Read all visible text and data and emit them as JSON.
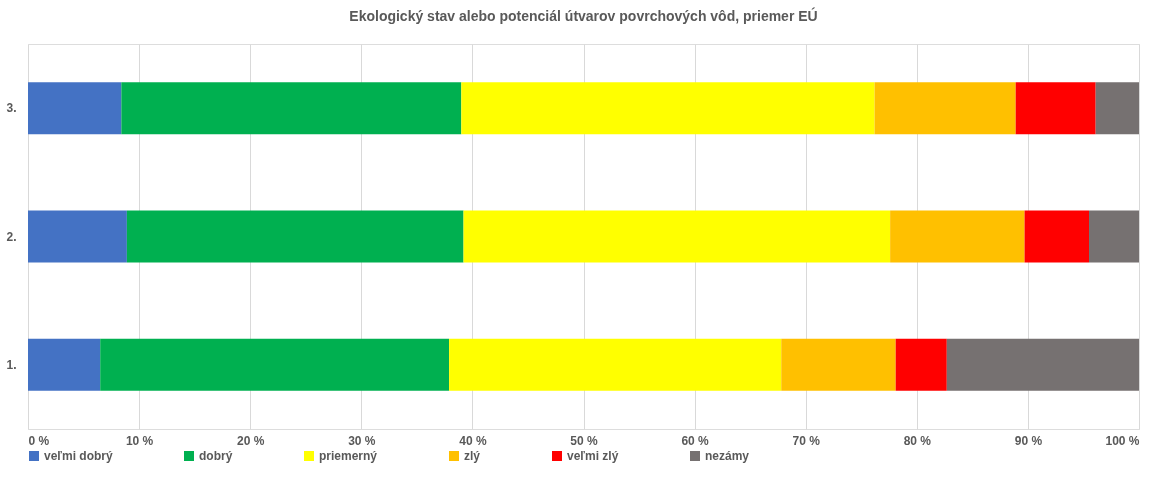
{
  "chart_data": {
    "type": "bar",
    "orientation": "horizontal",
    "stacked": true,
    "title": "Ekologický stav alebo potenciál útvarov povrchových vôd, priemer EÚ",
    "categories": [
      "3.",
      "2.",
      "1."
    ],
    "series": [
      {
        "name": "veľmi dobrý",
        "color": "#4472c4",
        "values": [
          8.4,
          8.9,
          6.5
        ]
      },
      {
        "name": "dobrý",
        "color": "#00b050",
        "values": [
          30.6,
          30.3,
          31.4
        ]
      },
      {
        "name": "priemerný",
        "color": "#ffff00",
        "values": [
          37.2,
          38.4,
          29.9
        ]
      },
      {
        "name": "zlý",
        "color": "#ffc000",
        "values": [
          12.7,
          12.1,
          10.3
        ]
      },
      {
        "name": "veľmi zlý",
        "color": "#ff0000",
        "values": [
          7.2,
          5.8,
          4.6
        ]
      },
      {
        "name": "nezámy",
        "color": "#767171",
        "values": [
          3.9,
          4.5,
          17.3
        ]
      }
    ],
    "xlim": [
      0,
      100
    ],
    "xticks": [
      {
        "value": 0,
        "label": "0 %"
      },
      {
        "value": 10,
        "label": "10 %"
      },
      {
        "value": 20,
        "label": "20 %"
      },
      {
        "value": 30,
        "label": "30 %"
      },
      {
        "value": 40,
        "label": "40 %"
      },
      {
        "value": 50,
        "label": "50 %"
      },
      {
        "value": 60,
        "label": "60 %"
      },
      {
        "value": 70,
        "label": "70 %"
      },
      {
        "value": 80,
        "label": "80 %"
      },
      {
        "value": 90,
        "label": "90 %"
      },
      {
        "value": 100,
        "label": "100 %"
      }
    ],
    "grid": "x",
    "legend": "bottom"
  }
}
